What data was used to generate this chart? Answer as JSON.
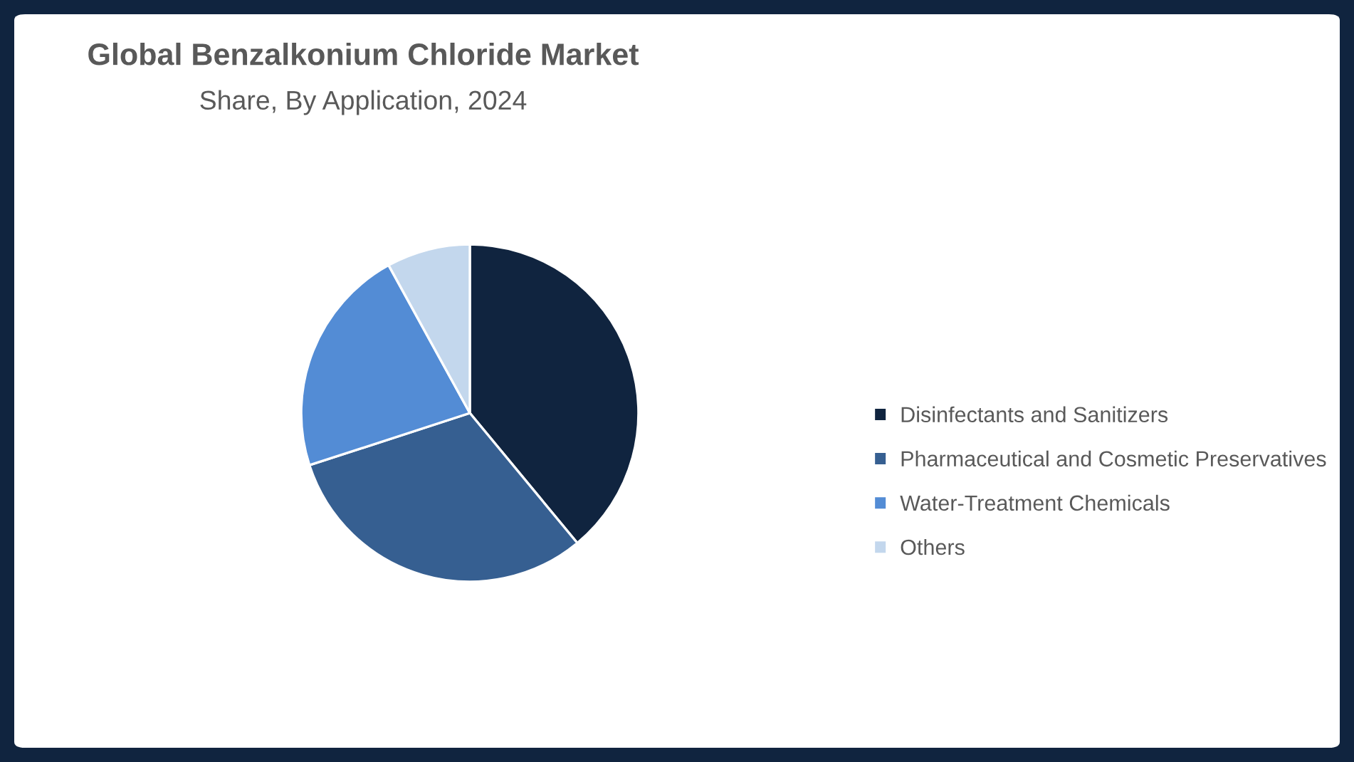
{
  "chart_data": {
    "type": "pie",
    "title": "Global Benzalkonium Chloride Market",
    "subtitle": "Share, By Application, 2024",
    "categories": [
      "Disinfectants and Sanitizers",
      "Pharmaceutical and Cosmetic Preservatives",
      "Water-Treatment Chemicals",
      "Others"
    ],
    "values": [
      39,
      31,
      22,
      8
    ],
    "colors": [
      "#10243f",
      "#365f91",
      "#538cd5",
      "#c3d7ed"
    ],
    "legend": "right"
  }
}
